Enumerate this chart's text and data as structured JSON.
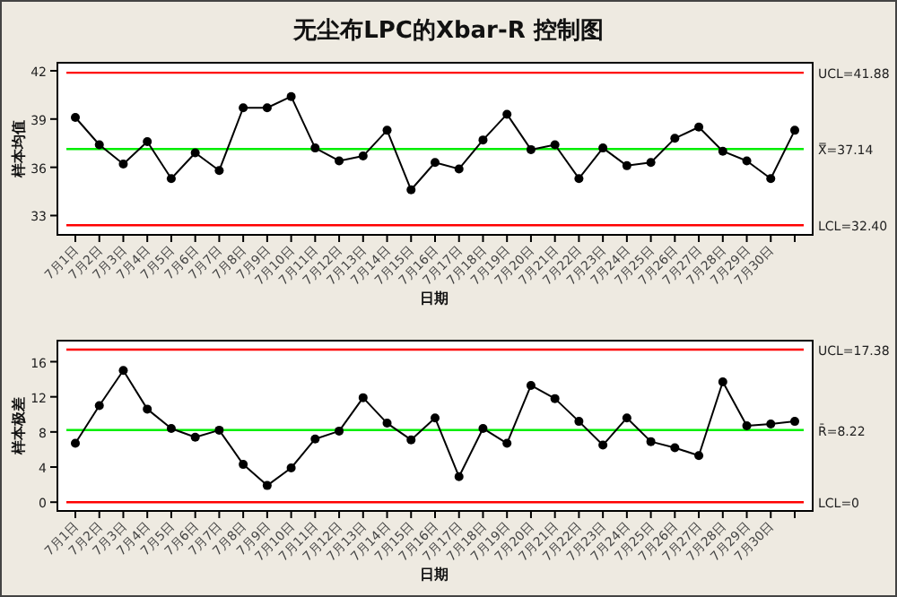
{
  "chart_data": [
    {
      "type": "line",
      "title": "无尘布LPC的Xbar-R 控制图",
      "xlabel": "日期",
      "ylabel": "样本均值",
      "color": "#000000",
      "marker": "circle",
      "grid": false,
      "categories": [
        "7月1日",
        "7月2日",
        "7月3日",
        "7月4日",
        "7月5日",
        "7月6日",
        "7月7日",
        "7月8日",
        "7月9日",
        "7月10日",
        "7月11日",
        "7月12日",
        "7月13日",
        "7月14日",
        "7月15日",
        "7月16日",
        "7月17日",
        "7月18日",
        "7月19日",
        "7月20日",
        "7月21日",
        "7月22日",
        "7月23日",
        "7月24日",
        "7月25日",
        "7月26日",
        "7月27日",
        "7月28日",
        "7月29日",
        "7月30日",
        null
      ],
      "values": [
        39.1,
        37.4,
        36.2,
        37.6,
        35.3,
        36.9,
        35.8,
        39.7,
        39.7,
        40.4,
        37.2,
        36.4,
        36.7,
        38.3,
        34.6,
        36.3,
        35.9,
        37.7,
        39.3,
        37.1,
        37.4,
        35.3,
        37.2,
        36.1,
        36.3,
        37.8,
        38.5,
        37.0,
        36.4,
        35.3,
        38.3
      ],
      "ylim": [
        31.8,
        42.5
      ],
      "yticks": [
        33,
        36,
        39,
        42
      ],
      "ref_lines": [
        {
          "axis": "y",
          "value": 41.88,
          "label": "UCL=41.88",
          "color": "#ff0000"
        },
        {
          "axis": "y",
          "value": 37.14,
          "label": "X̿=37.14",
          "color": "#00ee00"
        },
        {
          "axis": "y",
          "value": 32.4,
          "label": "LCL=32.40",
          "color": "#ff0000"
        }
      ]
    },
    {
      "type": "line",
      "xlabel": "日期",
      "ylabel": "样本极差",
      "color": "#000000",
      "marker": "circle",
      "grid": false,
      "categories": [
        "7月1日",
        "7月2日",
        "7月3日",
        "7月4日",
        "7月5日",
        "7月6日",
        "7月7日",
        "7月8日",
        "7月9日",
        "7月10日",
        "7月11日",
        "7月12日",
        "7月13日",
        "7月14日",
        "7月15日",
        "7月16日",
        "7月17日",
        "7月18日",
        "7月19日",
        "7月20日",
        "7月21日",
        "7月22日",
        "7月23日",
        "7月24日",
        "7月25日",
        "7月26日",
        "7月27日",
        "7月28日",
        "7月29日",
        "7月30日",
        null
      ],
      "values": [
        6.7,
        11.0,
        15.0,
        10.6,
        8.4,
        7.4,
        8.2,
        4.3,
        1.9,
        3.9,
        7.2,
        8.1,
        11.9,
        9.0,
        7.1,
        9.6,
        2.9,
        8.4,
        6.7,
        13.3,
        11.8,
        9.2,
        6.5,
        9.6,
        6.9,
        6.2,
        5.3,
        13.7,
        8.7,
        8.9,
        9.2
      ],
      "ylim": [
        -1,
        18.4
      ],
      "yticks": [
        0,
        4,
        8,
        12,
        16
      ],
      "ref_lines": [
        {
          "axis": "y",
          "value": 17.38,
          "label": "UCL=17.38",
          "color": "#ff0000"
        },
        {
          "axis": "y",
          "value": 8.22,
          "label": "R̄=8.22",
          "color": "#00ee00"
        },
        {
          "axis": "y",
          "value": 0,
          "label": "LCL=0",
          "color": "#ff0000"
        }
      ]
    }
  ]
}
